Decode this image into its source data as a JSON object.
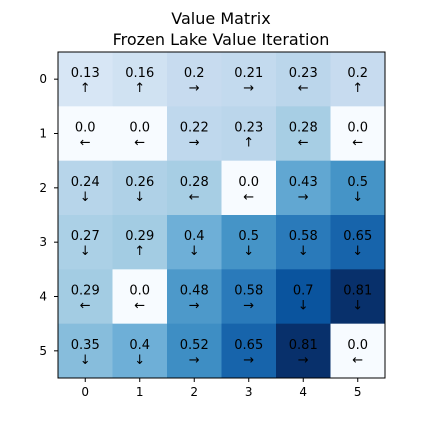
{
  "chart_data": {
    "type": "heatmap",
    "title": "Value Matrix",
    "subtitle": "Frozen Lake Value Iteration",
    "xlabel": "",
    "ylabel": "",
    "x_ticks": [
      "0",
      "1",
      "2",
      "3",
      "4",
      "5"
    ],
    "y_ticks": [
      "0",
      "1",
      "2",
      "3",
      "4",
      "5"
    ],
    "colormap": "Blues",
    "value_range": [
      0.0,
      0.81
    ],
    "grid": false,
    "values": [
      [
        0.13,
        0.16,
        0.2,
        0.21,
        0.23,
        0.2
      ],
      [
        0.0,
        0.0,
        0.22,
        0.23,
        0.28,
        0.0
      ],
      [
        0.24,
        0.26,
        0.28,
        0.0,
        0.43,
        0.5
      ],
      [
        0.27,
        0.29,
        0.4,
        0.5,
        0.58,
        0.65
      ],
      [
        0.29,
        0.0,
        0.48,
        0.58,
        0.7,
        0.81
      ],
      [
        0.35,
        0.4,
        0.52,
        0.65,
        0.81,
        0.0
      ]
    ],
    "value_labels": [
      [
        "0.13",
        "0.16",
        "0.2",
        "0.21",
        "0.23",
        "0.2"
      ],
      [
        "0.0",
        "0.0",
        "0.22",
        "0.23",
        "0.28",
        "0.0"
      ],
      [
        "0.24",
        "0.26",
        "0.28",
        "0.0",
        "0.43",
        "0.5"
      ],
      [
        "0.27",
        "0.29",
        "0.4",
        "0.5",
        "0.58",
        "0.65"
      ],
      [
        "0.29",
        "0.0",
        "0.48",
        "0.58",
        "0.7",
        "0.81"
      ],
      [
        "0.35",
        "0.4",
        "0.52",
        "0.65",
        "0.81",
        "0.0"
      ]
    ],
    "arrows": [
      [
        "↑",
        "↑",
        "→",
        "→",
        "←",
        "↑"
      ],
      [
        "←",
        "←",
        "→",
        "↑",
        "←",
        "←"
      ],
      [
        "↓",
        "↓",
        "←",
        "←",
        "→",
        "↓"
      ],
      [
        "↓",
        "↑",
        "↓",
        "↓",
        "↓",
        "↓"
      ],
      [
        "←",
        "←",
        "→",
        "→",
        "↓",
        "↓"
      ],
      [
        "↓",
        "↓",
        "→",
        "→",
        "→",
        "←"
      ]
    ]
  }
}
